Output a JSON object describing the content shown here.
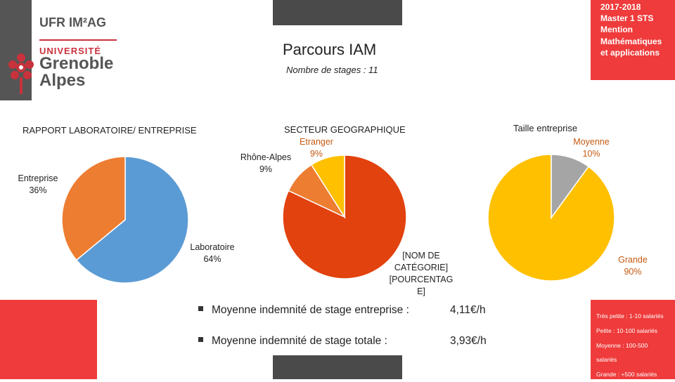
{
  "header": {
    "faculty": "UFR IM²AG",
    "university_line1": "UNIVERSITÉ",
    "university_line2": "Grenoble",
    "university_line3": "Alpes",
    "program_title": "Parcours IAM",
    "stages_count": "Nombre de stages : 11"
  },
  "corner": {
    "year": "2017-2018",
    "line1": "Master 1 STS",
    "line2": "Mention",
    "line3": "Mathématiques",
    "line4": "et applications"
  },
  "colors": {
    "blue": "#5b9bd5",
    "orange": "#ed7d31",
    "red_orange": "#e2420e",
    "gold": "#ffc000",
    "grey": "#a5a5a5",
    "brand_red": "#ef3b3b",
    "dark_grey": "#4a4a4a"
  },
  "chart_data": [
    {
      "type": "pie",
      "title": "RAPPORT LABORATOIRE/ ENTREPRISE",
      "slices": [
        {
          "name": "Laboratoire",
          "value": 64,
          "label": "64%",
          "color": "#5b9bd5"
        },
        {
          "name": "Entreprise",
          "value": 36,
          "label": "36%",
          "color": "#ed7d31"
        }
      ]
    },
    {
      "type": "pie",
      "title": "SECTEUR GEOGRAPHIQUE",
      "slices": [
        {
          "name": "[NOM DE CATÉGORIE]",
          "value": 82,
          "label": "[POURCENTAG E]",
          "color": "#e2420e"
        },
        {
          "name": "Rhône-Alpes",
          "value": 9,
          "label": "9%",
          "color": "#ed7d31"
        },
        {
          "name": "Etranger",
          "value": 9,
          "label": "9%",
          "color": "#ffc000"
        }
      ]
    },
    {
      "type": "pie",
      "title": "Taille entreprise",
      "slices": [
        {
          "name": "Grande",
          "value": 90,
          "label": "90%",
          "color": "#ffc000"
        },
        {
          "name": "Moyenne",
          "value": 10,
          "label": "10%",
          "color": "#a5a5a5"
        }
      ]
    }
  ],
  "stats": [
    {
      "label": "Moyenne indemnité de stage entreprise :",
      "value": "4,11€/h"
    },
    {
      "label": "Moyenne indemnité de stage totale :",
      "value": "3,93€/h"
    }
  ],
  "size_legend": [
    "Très petite : 1-10 salariés",
    "Petite : 10-100 salariés",
    "Moyenne : 100-500",
    "salariés",
    "Grande : +500 salariés"
  ]
}
